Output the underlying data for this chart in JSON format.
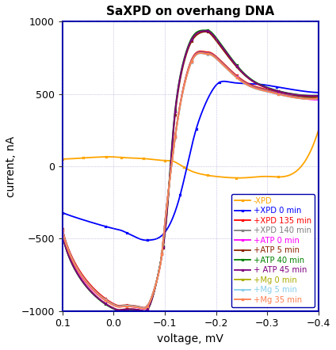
{
  "title": "SaXPD on overhang DNA",
  "xlabel": "voltage, mV",
  "ylabel": "current, nA",
  "xlim": [
    0.1,
    -0.4
  ],
  "ylim": [
    -1000,
    1000
  ],
  "xticks": [
    0.1,
    0.0,
    -0.1,
    -0.2,
    -0.3,
    -0.4
  ],
  "yticks": [
    -1000,
    -500,
    0,
    500,
    1000
  ],
  "curves": [
    {
      "label": "-XPD",
      "color": "#FFA500",
      "lw": 1.3,
      "v": [
        0.1,
        0.07,
        0.05,
        0.02,
        0.0,
        -0.02,
        -0.05,
        -0.07,
        -0.1,
        -0.12,
        -0.15,
        -0.18,
        -0.2,
        -0.25,
        -0.3,
        -0.35,
        -0.4
      ],
      "i": [
        50,
        55,
        60,
        65,
        65,
        60,
        55,
        50,
        40,
        30,
        -30,
        -60,
        -70,
        -80,
        -70,
        -50,
        250
      ]
    },
    {
      "label": "+XPD 0 min",
      "color": "#0000FF",
      "lw": 1.3,
      "v": [
        0.1,
        0.05,
        0.0,
        -0.02,
        -0.05,
        -0.07,
        -0.09,
        -0.11,
        -0.13,
        -0.15,
        -0.17,
        -0.2,
        -0.23,
        -0.27,
        -0.3,
        -0.35,
        -0.4
      ],
      "i": [
        -320,
        -380,
        -430,
        -450,
        -500,
        -510,
        -490,
        -400,
        -200,
        100,
        350,
        560,
        580,
        570,
        560,
        530,
        510
      ]
    },
    {
      "label": "+XPD 135 min",
      "color": "#FF0000",
      "lw": 1.3,
      "v": [
        0.1,
        0.05,
        0.0,
        -0.02,
        -0.05,
        -0.07,
        -0.09,
        -0.1,
        -0.12,
        -0.14,
        -0.16,
        -0.18,
        -0.2,
        -0.25,
        -0.3,
        -0.35,
        -0.4
      ],
      "i": [
        -430,
        -800,
        -950,
        -960,
        -970,
        -940,
        -700,
        -400,
        200,
        600,
        780,
        790,
        760,
        600,
        530,
        490,
        480
      ]
    },
    {
      "label": "+XPD 140 min",
      "color": "#808080",
      "lw": 1.3,
      "v": [
        0.1,
        0.05,
        0.0,
        -0.02,
        -0.05,
        -0.07,
        -0.09,
        -0.1,
        -0.12,
        -0.14,
        -0.16,
        -0.18,
        -0.2,
        -0.25,
        -0.3,
        -0.35,
        -0.4
      ],
      "i": [
        -440,
        -810,
        -955,
        -962,
        -972,
        -943,
        -703,
        -403,
        198,
        595,
        775,
        785,
        755,
        595,
        525,
        485,
        475
      ]
    },
    {
      "label": "+ATP 0 min",
      "color": "#FF00FF",
      "lw": 1.3,
      "v": [
        0.1,
        0.05,
        0.0,
        -0.02,
        -0.05,
        -0.07,
        -0.09,
        -0.1,
        -0.12,
        -0.14,
        -0.16,
        -0.18,
        -0.2,
        -0.25,
        -0.3,
        -0.35,
        -0.4
      ],
      "i": [
        -450,
        -820,
        -960,
        -968,
        -978,
        -948,
        -708,
        -408,
        195,
        590,
        770,
        780,
        750,
        590,
        520,
        480,
        460
      ]
    },
    {
      "label": "+ATP 5 min",
      "color": "#8B2500",
      "lw": 1.3,
      "v": [
        0.1,
        0.05,
        0.0,
        -0.02,
        -0.05,
        -0.07,
        -0.09,
        -0.105,
        -0.12,
        -0.14,
        -0.16,
        -0.18,
        -0.2,
        -0.25,
        -0.3,
        -0.35,
        -0.4
      ],
      "i": [
        -470,
        -840,
        -980,
        -988,
        -992,
        -965,
        -700,
        -300,
        350,
        750,
        900,
        930,
        870,
        650,
        540,
        495,
        475
      ]
    },
    {
      "label": "+ATP 40 min",
      "color": "#008000",
      "lw": 1.3,
      "v": [
        0.1,
        0.05,
        0.0,
        -0.02,
        -0.05,
        -0.07,
        -0.09,
        -0.105,
        -0.12,
        -0.14,
        -0.16,
        -0.18,
        -0.2,
        -0.25,
        -0.3,
        -0.35,
        -0.4
      ],
      "i": [
        -475,
        -845,
        -985,
        -992,
        -995,
        -968,
        -695,
        -280,
        380,
        770,
        920,
        940,
        890,
        660,
        545,
        500,
        490
      ]
    },
    {
      "label": "+ ATP 45 min",
      "color": "#800080",
      "lw": 1.3,
      "v": [
        0.1,
        0.05,
        0.0,
        -0.02,
        -0.05,
        -0.07,
        -0.09,
        -0.105,
        -0.12,
        -0.14,
        -0.16,
        -0.18,
        -0.2,
        -0.25,
        -0.3,
        -0.35,
        -0.4
      ],
      "i": [
        -472,
        -842,
        -982,
        -990,
        -993,
        -966,
        -698,
        -285,
        372,
        762,
        912,
        935,
        882,
        655,
        542,
        498,
        488
      ]
    },
    {
      "label": "+Mg 0 min",
      "color": "#AAAA00",
      "lw": 1.3,
      "v": [
        0.1,
        0.05,
        0.0,
        -0.02,
        -0.05,
        -0.07,
        -0.09,
        -0.1,
        -0.12,
        -0.14,
        -0.16,
        -0.18,
        -0.2,
        -0.25,
        -0.3,
        -0.35,
        -0.4
      ],
      "i": [
        -442,
        -812,
        -958,
        -966,
        -975,
        -945,
        -706,
        -406,
        192,
        588,
        768,
        778,
        748,
        588,
        518,
        478,
        470
      ]
    },
    {
      "label": "+Mg 5 min",
      "color": "#87CEEB",
      "lw": 1.3,
      "v": [
        0.1,
        0.05,
        0.0,
        -0.02,
        -0.05,
        -0.07,
        -0.09,
        -0.1,
        -0.12,
        -0.14,
        -0.16,
        -0.18,
        -0.2,
        -0.25,
        -0.3,
        -0.35,
        -0.4
      ],
      "i": [
        -441,
        -811,
        -957,
        -965,
        -974,
        -944,
        -705,
        -405,
        190,
        585,
        765,
        775,
        745,
        585,
        515,
        476,
        468
      ]
    },
    {
      "label": "+Mg 35 min",
      "color": "#FF7F50",
      "lw": 1.3,
      "v": [
        0.1,
        0.05,
        0.0,
        -0.02,
        -0.05,
        -0.07,
        -0.09,
        -0.1,
        -0.12,
        -0.14,
        -0.16,
        -0.18,
        -0.2,
        -0.25,
        -0.3,
        -0.35,
        -0.4
      ],
      "i": [
        -445,
        -815,
        -960,
        -968,
        -977,
        -946,
        -707,
        -407,
        193,
        587,
        767,
        777,
        747,
        587,
        517,
        477,
        469
      ]
    }
  ]
}
